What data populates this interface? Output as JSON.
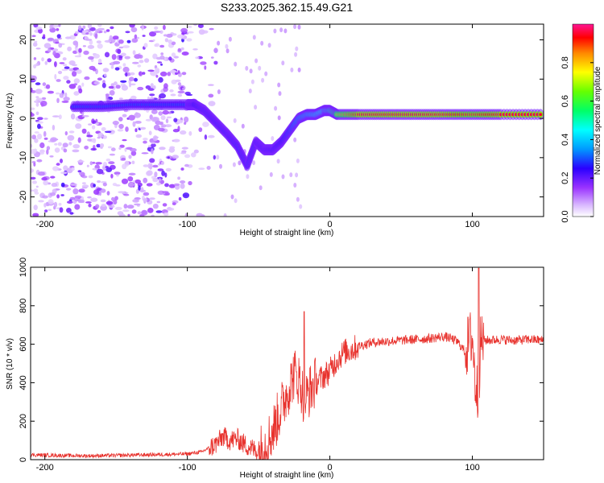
{
  "title": "S233.2025.362.15.49.G21",
  "chart_data": [
    {
      "type": "heatmap",
      "name": "spectrogram",
      "xlabel": "Height of straight line (km)",
      "ylabel": "Frequency (Hz)",
      "xlim": [
        -210,
        150
      ],
      "ylim": [
        -25,
        24
      ],
      "xticks": [
        -200,
        -100,
        0,
        100
      ],
      "xtick_labels": [
        "-200",
        "-100",
        "0",
        "100"
      ],
      "yticks": [
        -20,
        -10,
        0,
        10,
        20
      ],
      "ytick_labels": [
        "-20",
        "-10",
        "0",
        "10",
        "20"
      ],
      "colorbar": {
        "label": "Normalized spectral amplitude",
        "range": [
          0,
          1
        ],
        "ticks": [
          0.0,
          0.2,
          0.4,
          0.6,
          0.8
        ],
        "tick_labels": [
          "0.0",
          "0.2",
          "0.4",
          "0.6",
          "0.8"
        ]
      },
      "ridge": {
        "x": [
          -180,
          -160,
          -140,
          -120,
          -100,
          -95,
          -88,
          -80,
          -72,
          -65,
          -58,
          -52,
          -46,
          -40,
          -34,
          -28,
          -22,
          -16,
          -10,
          -4,
          0,
          5,
          20,
          40,
          60,
          80,
          100,
          120,
          150
        ],
        "y": [
          3,
          3,
          3.5,
          3.5,
          3.5,
          3.5,
          2,
          -1,
          -4,
          -7,
          -12,
          -6,
          -8,
          -8,
          -6,
          -3,
          0,
          1,
          1,
          2,
          2,
          1,
          1,
          1,
          1,
          1,
          1,
          1,
          1
        ],
        "amplitude": [
          0.3,
          0.3,
          0.3,
          0.3,
          0.3,
          0.35,
          0.3,
          0.3,
          0.3,
          0.32,
          0.3,
          0.3,
          0.3,
          0.32,
          0.35,
          0.4,
          0.5,
          0.55,
          0.6,
          0.65,
          0.7,
          0.8,
          0.95,
          0.95,
          0.95,
          0.95,
          0.9,
          0.95,
          0.95
        ]
      }
    },
    {
      "type": "line",
      "name": "snr",
      "xlabel": "Height of straight line (km)",
      "ylabel": "SNR (10 * v/v)",
      "xlim": [
        -210,
        150
      ],
      "ylim": [
        0,
        1000
      ],
      "xticks": [
        -200,
        -100,
        0,
        100
      ],
      "xtick_labels": [
        "-200",
        "-100",
        "0",
        "100"
      ],
      "yticks": [
        0,
        200,
        400,
        600,
        800,
        1000
      ],
      "ytick_labels": [
        "0",
        "200",
        "400",
        "600",
        "800",
        "1000"
      ],
      "color": "#e8322d",
      "x": [
        -210,
        -190,
        -170,
        -150,
        -130,
        -110,
        -100,
        -90,
        -80,
        -75,
        -70,
        -65,
        -60,
        -55,
        -50,
        -45,
        -40,
        -35,
        -30,
        -25,
        -22,
        -20,
        -18,
        -15,
        -10,
        -5,
        0,
        5,
        10,
        15,
        20,
        25,
        30,
        40,
        50,
        60,
        70,
        80,
        85,
        90,
        95,
        98,
        100,
        102,
        104,
        106,
        110,
        120,
        130,
        140,
        150
      ],
      "y": [
        25,
        22,
        20,
        22,
        25,
        28,
        30,
        40,
        80,
        120,
        100,
        110,
        80,
        60,
        40,
        80,
        150,
        250,
        350,
        450,
        420,
        380,
        300,
        350,
        400,
        430,
        460,
        520,
        560,
        570,
        590,
        600,
        610,
        615,
        620,
        625,
        630,
        640,
        630,
        610,
        560,
        620,
        640,
        400,
        330,
        620,
        620,
        625,
        620,
        625,
        620
      ]
    }
  ]
}
